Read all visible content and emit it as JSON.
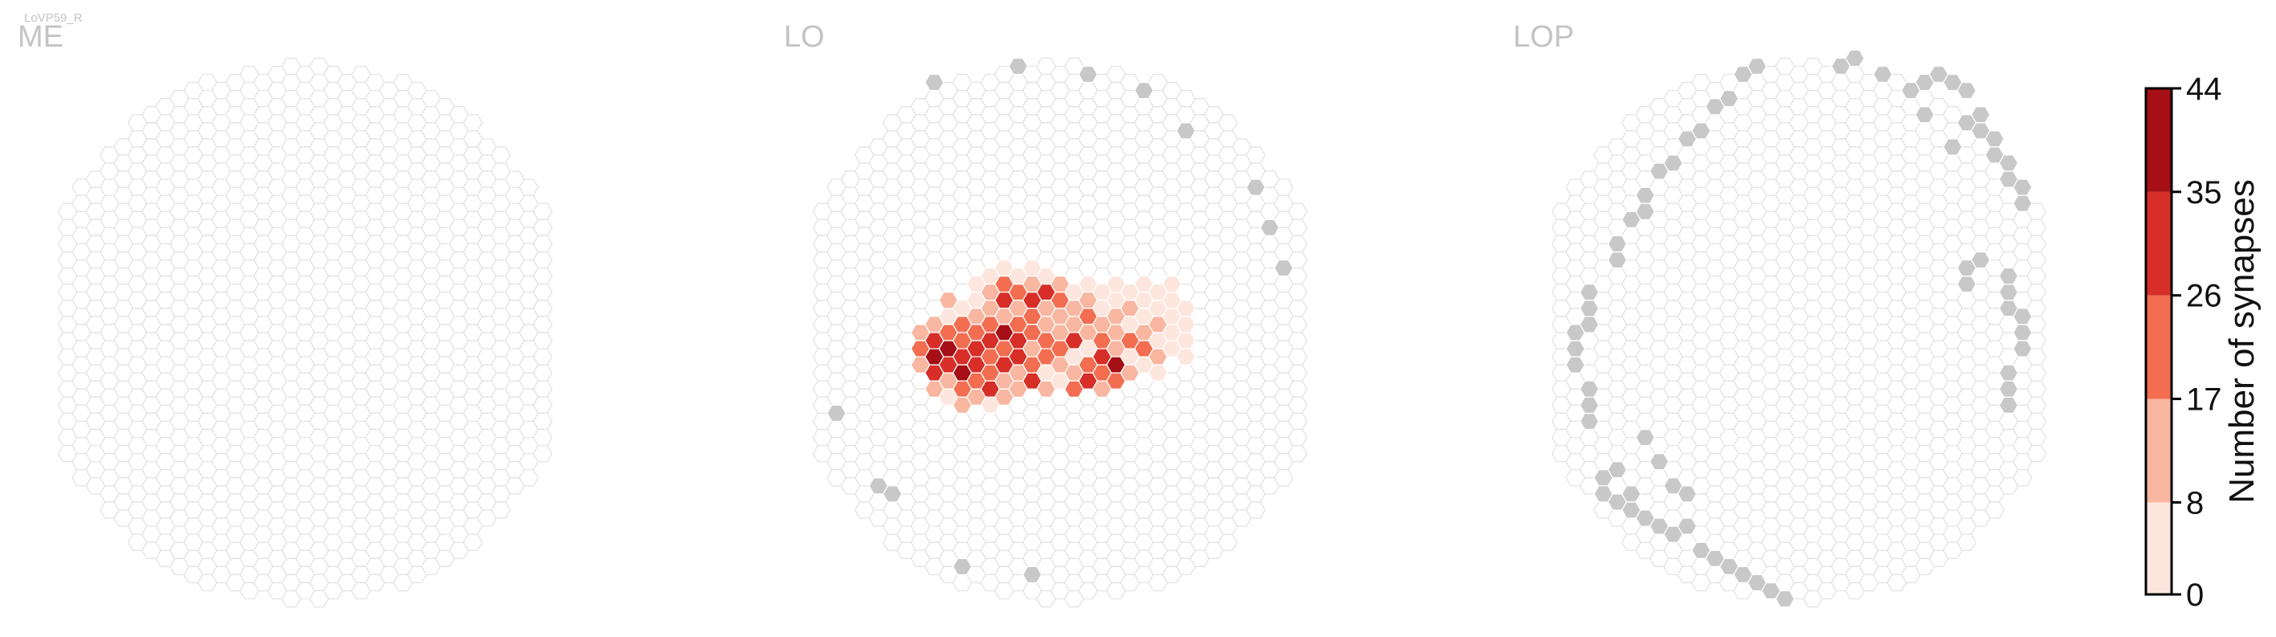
{
  "figure": {
    "cell_type": "LoVP59_R"
  },
  "colors": {
    "empty_fill": "#ffffff",
    "empty_stroke": "#e3e3e3",
    "outside_fill": "#c8c8c8",
    "bins": [
      "#fde6dd",
      "#f9b6a0",
      "#f36d50",
      "#d72e28",
      "#a50f15"
    ]
  },
  "chart_data": {
    "type": "heatmap",
    "title": "",
    "panels": [
      {
        "name": "ME",
        "active": [],
        "outside": []
      },
      {
        "name": "LO",
        "active": [
          [
            -10,
            0,
            11
          ],
          [
            -10,
            1,
            19
          ],
          [
            -10,
            2,
            16
          ],
          [
            -9,
            -1,
            15
          ],
          [
            -9,
            0,
            30
          ],
          [
            -9,
            1,
            40
          ],
          [
            -9,
            2,
            27
          ],
          [
            -9,
            3,
            10
          ],
          [
            -8,
            -2,
            12
          ],
          [
            -8,
            -1,
            8
          ],
          [
            -8,
            0,
            22
          ],
          [
            -8,
            1,
            36
          ],
          [
            -8,
            2,
            31
          ],
          [
            -8,
            3,
            14
          ],
          [
            -8,
            4,
            6
          ],
          [
            -7,
            -2,
            5
          ],
          [
            -7,
            -1,
            18
          ],
          [
            -7,
            0,
            25
          ],
          [
            -7,
            1,
            33
          ],
          [
            -7,
            2,
            38
          ],
          [
            -7,
            3,
            20
          ],
          [
            -7,
            4,
            9
          ],
          [
            -6,
            -3,
            4
          ],
          [
            -6,
            -2,
            6
          ],
          [
            -6,
            -1,
            13
          ],
          [
            -6,
            0,
            21
          ],
          [
            -6,
            1,
            35
          ],
          [
            -6,
            2,
            29
          ],
          [
            -6,
            3,
            24
          ],
          [
            -6,
            4,
            11
          ],
          [
            -5,
            -4,
            3
          ],
          [
            -5,
            -3,
            12
          ],
          [
            -5,
            -2,
            16
          ],
          [
            -5,
            -1,
            23
          ],
          [
            -5,
            0,
            32
          ],
          [
            -5,
            1,
            26
          ],
          [
            -5,
            2,
            19
          ],
          [
            -5,
            3,
            31
          ],
          [
            -5,
            4,
            7
          ],
          [
            -4,
            -4,
            6
          ],
          [
            -4,
            -3,
            18
          ],
          [
            -4,
            -2,
            29
          ],
          [
            -4,
            -1,
            14
          ],
          [
            -4,
            0,
            43
          ],
          [
            -4,
            1,
            22
          ],
          [
            -4,
            2,
            28
          ],
          [
            -4,
            3,
            15
          ],
          [
            -4,
            4,
            9
          ],
          [
            -3,
            -4,
            8
          ],
          [
            -3,
            -3,
            24
          ],
          [
            -3,
            -2,
            11
          ],
          [
            -3,
            -1,
            20
          ],
          [
            -3,
            0,
            27
          ],
          [
            -3,
            1,
            34
          ],
          [
            -3,
            2,
            17
          ],
          [
            -3,
            3,
            12
          ],
          [
            -2,
            -4,
            5
          ],
          [
            -2,
            -3,
            13
          ],
          [
            -2,
            -2,
            33
          ],
          [
            -2,
            -1,
            19
          ],
          [
            -2,
            0,
            22
          ],
          [
            -2,
            1,
            10
          ],
          [
            -2,
            2,
            25
          ],
          [
            -2,
            3,
            30
          ],
          [
            -1,
            -4,
            7
          ],
          [
            -1,
            -3,
            28
          ],
          [
            -1,
            -2,
            14
          ],
          [
            -1,
            -1,
            9
          ],
          [
            -1,
            0,
            18
          ],
          [
            -1,
            1,
            26
          ],
          [
            -1,
            2,
            6
          ],
          [
            -1,
            3,
            12
          ],
          [
            0,
            -3,
            10
          ],
          [
            0,
            -2,
            23
          ],
          [
            0,
            -1,
            15
          ],
          [
            0,
            0,
            12
          ],
          [
            0,
            1,
            21
          ],
          [
            0,
            2,
            11
          ],
          [
            0,
            3,
            5
          ],
          [
            1,
            -3,
            6
          ],
          [
            1,
            -2,
            9
          ],
          [
            1,
            -1,
            16
          ],
          [
            1,
            0,
            30
          ],
          [
            1,
            1,
            8
          ],
          [
            1,
            2,
            14
          ],
          [
            1,
            3,
            20
          ],
          [
            2,
            -3,
            4
          ],
          [
            2,
            -2,
            13
          ],
          [
            2,
            -1,
            25
          ],
          [
            2,
            0,
            11
          ],
          [
            2,
            1,
            7
          ],
          [
            2,
            2,
            19
          ],
          [
            2,
            3,
            32
          ],
          [
            3,
            -3,
            3
          ],
          [
            3,
            -2,
            7
          ],
          [
            3,
            -1,
            12
          ],
          [
            3,
            0,
            21
          ],
          [
            3,
            1,
            29
          ],
          [
            3,
            2,
            24
          ],
          [
            3,
            3,
            10
          ],
          [
            4,
            -3,
            2
          ],
          [
            4,
            -2,
            5
          ],
          [
            4,
            -1,
            16
          ],
          [
            4,
            0,
            9
          ],
          [
            4,
            1,
            14
          ],
          [
            4,
            2,
            36
          ],
          [
            4,
            3,
            18
          ],
          [
            5,
            -3,
            3
          ],
          [
            5,
            -2,
            11
          ],
          [
            5,
            -1,
            6
          ],
          [
            5,
            0,
            20
          ],
          [
            5,
            1,
            8
          ],
          [
            5,
            2,
            12
          ],
          [
            6,
            -3,
            2
          ],
          [
            6,
            -2,
            4
          ],
          [
            6,
            -1,
            7
          ],
          [
            6,
            0,
            15
          ],
          [
            6,
            1,
            19
          ],
          [
            6,
            2,
            6
          ],
          [
            7,
            -3,
            3
          ],
          [
            7,
            -2,
            6
          ],
          [
            7,
            -1,
            9
          ],
          [
            7,
            0,
            3
          ],
          [
            7,
            1,
            13
          ],
          [
            7,
            2,
            4
          ],
          [
            8,
            -3,
            2
          ],
          [
            8,
            -2,
            5
          ],
          [
            8,
            -1,
            4
          ],
          [
            8,
            0,
            7
          ],
          [
            8,
            1,
            3
          ],
          [
            9,
            -2,
            3
          ],
          [
            9,
            -1,
            5
          ],
          [
            9,
            0,
            2
          ],
          [
            9,
            1,
            4
          ]
        ],
        "outside": [
          [
            -16,
            5
          ],
          [
            -13,
            9
          ],
          [
            -12,
            10
          ],
          [
            -7,
            14
          ],
          [
            -2,
            15
          ],
          [
            16,
            -4
          ],
          [
            15,
            -7
          ],
          [
            14,
            -9
          ],
          [
            9,
            -13
          ],
          [
            6,
            -15
          ],
          [
            2,
            -16
          ],
          [
            -3,
            -17
          ],
          [
            -9,
            -16
          ]
        ]
      },
      {
        "name": "LOP",
        "active": [],
        "outside": [
          [
            -14,
            10
          ],
          [
            -13,
            10
          ],
          [
            -12,
            10
          ],
          [
            -12,
            11
          ],
          [
            -11,
            11
          ],
          [
            -10,
            12
          ],
          [
            -9,
            12
          ],
          [
            -8,
            12
          ],
          [
            -7,
            13
          ],
          [
            -6,
            14
          ],
          [
            -5,
            14
          ],
          [
            -4,
            15
          ],
          [
            -3,
            15
          ],
          [
            -2,
            16
          ],
          [
            -1,
            16
          ],
          [
            9,
            -16
          ],
          [
            10,
            -16
          ],
          [
            11,
            -16
          ],
          [
            12,
            -15
          ],
          [
            13,
            -14
          ],
          [
            13,
            -13
          ],
          [
            14,
            -12
          ],
          [
            14,
            -11
          ],
          [
            15,
            -11
          ],
          [
            15,
            -10
          ],
          [
            16,
            -9
          ],
          [
            16,
            -8
          ],
          [
            -15,
            5
          ],
          [
            -15,
            4
          ],
          [
            -15,
            3
          ],
          [
            -16,
            2
          ],
          [
            -16,
            1
          ],
          [
            -16,
            0
          ],
          [
            -15,
            -1
          ],
          [
            -15,
            -2
          ],
          [
            -15,
            -3
          ],
          [
            15,
            -4
          ],
          [
            15,
            -3
          ],
          [
            15,
            -2
          ],
          [
            16,
            -1
          ],
          [
            16,
            0
          ],
          [
            16,
            1
          ],
          [
            15,
            2
          ],
          [
            15,
            3
          ],
          [
            15,
            4
          ],
          [
            -13,
            -5
          ],
          [
            -13,
            -6
          ],
          [
            -12,
            -7
          ],
          [
            -11,
            -8
          ],
          [
            -11,
            -9
          ],
          [
            -10,
            -10
          ],
          [
            -9,
            -11
          ],
          [
            -8,
            -12
          ],
          [
            -7,
            -13
          ],
          [
            -6,
            -14
          ],
          [
            -5,
            -15
          ],
          [
            -4,
            -16
          ],
          [
            -3,
            -17
          ],
          [
            3,
            -17
          ],
          [
            4,
            -17
          ],
          [
            6,
            -16
          ],
          [
            8,
            -15
          ],
          [
            9,
            -14
          ],
          [
            12,
            -13
          ],
          [
            11,
            -12
          ],
          [
            12,
            -3
          ],
          [
            13,
            -5
          ],
          [
            12,
            -4
          ],
          [
            -11,
            6
          ],
          [
            -10,
            8
          ],
          [
            -9,
            9
          ],
          [
            -8,
            10
          ],
          [
            -13,
            8
          ],
          [
            -14,
            9
          ]
        ]
      }
    ],
    "colorbar": {
      "label": "Number of synapses",
      "ticks": [
        0,
        8,
        17,
        26,
        35,
        44
      ],
      "range": [
        0,
        44
      ]
    }
  }
}
